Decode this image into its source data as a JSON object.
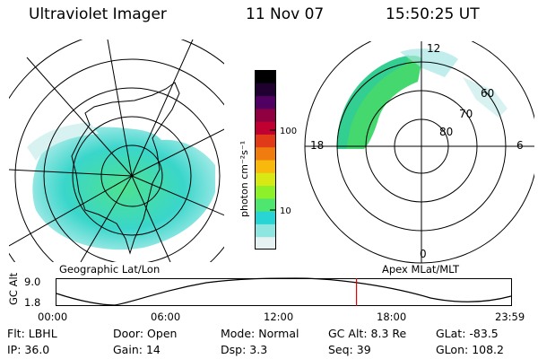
{
  "header": {
    "title": "Ultraviolet Imager",
    "date": "11 Nov 07",
    "time": "15:50:25 UT"
  },
  "left_panel": {
    "label": "Geographic Lat/Lon"
  },
  "right_panel": {
    "label": "Apex MLat/MLT",
    "mlt_labels": {
      "top": "12",
      "left": "18",
      "right": "6",
      "bottom": "0"
    },
    "lat_labels": [
      "60",
      "70",
      "80"
    ]
  },
  "colorbar": {
    "unit": "photon cm⁻²s⁻¹",
    "tick_labels": [
      "100",
      "10"
    ],
    "colors": [
      "#e6f2f2",
      "#8fe6e0",
      "#28d4d4",
      "#4ee66e",
      "#8ef028",
      "#d8e814",
      "#f8b80c",
      "#f07c10",
      "#e03a18",
      "#c00030",
      "#900040",
      "#500060",
      "#200030",
      "#000000"
    ]
  },
  "gc_alt_plot": {
    "ylabel": "GC Alt",
    "y_ticks": [
      "9.0",
      "1.8"
    ],
    "x_ticks": [
      "00:00",
      "06:00",
      "12:00",
      "18:00",
      "23:59"
    ],
    "marker_time_hours": 15.84,
    "line_color": "#000000",
    "marker_color": "#e00000"
  },
  "footer": {
    "row1": [
      {
        "label": "Flt:",
        "value": "LBHL"
      },
      {
        "label": "Door:",
        "value": "Open"
      },
      {
        "label": "Mode:",
        "value": "Normal"
      },
      {
        "label": "GC Alt:",
        "value": "8.3 Re"
      },
      {
        "label": "GLat:",
        "value": "-83.5"
      }
    ],
    "row2": [
      {
        "label": "IP:",
        "value": "36.0"
      },
      {
        "label": "Gain:",
        "value": "14"
      },
      {
        "label": "Dsp:",
        "value": "3.3"
      },
      {
        "label": "Seq:",
        "value": "39"
      },
      {
        "label": "GLon:",
        "value": "108.2"
      }
    ]
  }
}
